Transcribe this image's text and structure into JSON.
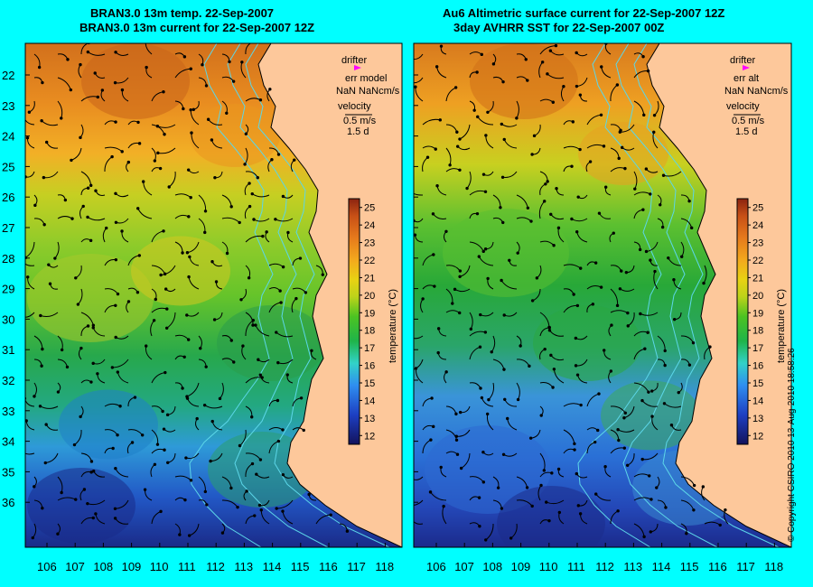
{
  "panels": [
    {
      "title_line1": "BRAN3.0 13m temp. 22-Sep-2007",
      "title_line2": "BRAN3.0 13m current for 22-Sep-2007 12Z",
      "legend": {
        "drifter_label": "drifter",
        "err_label": "err model",
        "err_value": "NaN NaNcm/s",
        "velocity_label": "velocity",
        "velocity_scale": "0.5 m/s",
        "duration": "1.5 d"
      }
    },
    {
      "title_line1": "Au6 Altimetric surface current for 22-Sep-2007 12Z",
      "title_line2": "3day AVHRR SST for 22-Sep-2007 00Z",
      "legend": {
        "drifter_label": "drifter",
        "err_label": "err alt",
        "err_value": "NaN NaNcm/s",
        "velocity_label": "velocity",
        "velocity_scale": "0.5 m/s",
        "duration": "1.5 d"
      }
    }
  ],
  "map": {
    "lat_ticks": [
      "22",
      "23",
      "24",
      "25",
      "26",
      "27",
      "28",
      "29",
      "30",
      "31",
      "32",
      "33",
      "34",
      "35",
      "36"
    ],
    "lon_ticks": [
      "106",
      "107",
      "108",
      "109",
      "110",
      "111",
      "112",
      "113",
      "114",
      "115",
      "116",
      "117",
      "118"
    ]
  },
  "colorbar": {
    "label": "temperature (°C)",
    "ticks": [
      "25",
      "24",
      "23",
      "22",
      "21",
      "20",
      "19",
      "18",
      "17",
      "16",
      "15",
      "14",
      "13",
      "12"
    ],
    "min": 11.5,
    "max": 25.5
  },
  "copyright": "© Copyright CSIRO 2010   13-Aug-2010 18:58:26",
  "colors": {
    "background": "#00ffff",
    "land": "#fdc89b",
    "vector": "#000000",
    "drifter": "#ff00ff",
    "contour": "#5cd6e8"
  }
}
